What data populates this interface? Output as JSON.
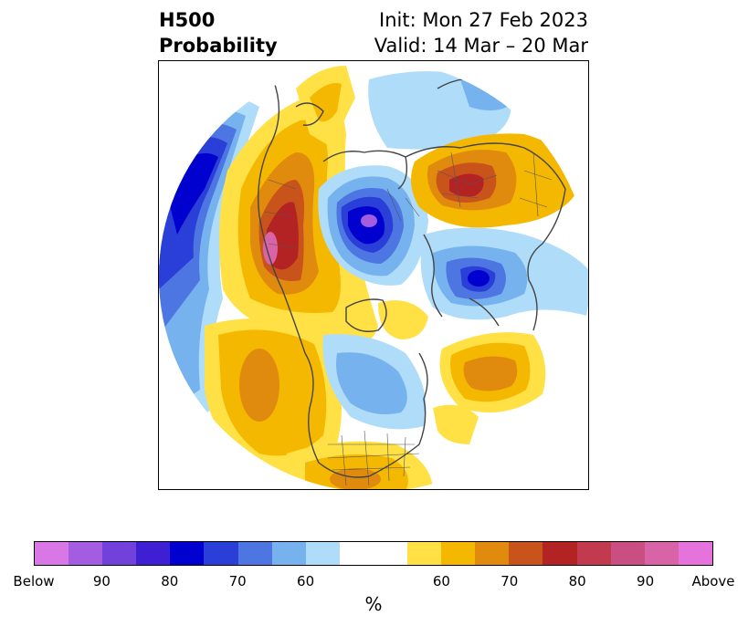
{
  "title": {
    "line1": "H500",
    "line2": "Probability"
  },
  "subtitle": {
    "init": "Init: Mon 27 Feb 2023",
    "valid": "Valid: 14 Mar – 20 Mar"
  },
  "colorbar": {
    "unit": "%",
    "colors": [
      "#d977e6",
      "#a45ce0",
      "#7240da",
      "#3f1fd4",
      "#0000cf",
      "#2a3ed8",
      "#4d76e3",
      "#76b3ee",
      "#aedcf9",
      "#ffffff",
      "#ffffff",
      "#ffe145",
      "#f5b800",
      "#e08a0e",
      "#c8531b",
      "#b32323",
      "#c13a4d",
      "#c94f83",
      "#d864a7",
      "#e673db"
    ],
    "tick_labels": [
      "Below",
      "90",
      "80",
      "70",
      "60",
      "60",
      "70",
      "80",
      "90",
      "Above"
    ]
  },
  "palette": {
    "below_deep": "#0000cf",
    "below_mid": "#4d76e3",
    "below_light": "#aedcf9",
    "above_light": "#ffe145",
    "above_mid": "#f5b800",
    "above_orange": "#e08a0e",
    "above_red": "#b32323",
    "above_magenta": "#d864a7",
    "coastline": "#444444"
  }
}
